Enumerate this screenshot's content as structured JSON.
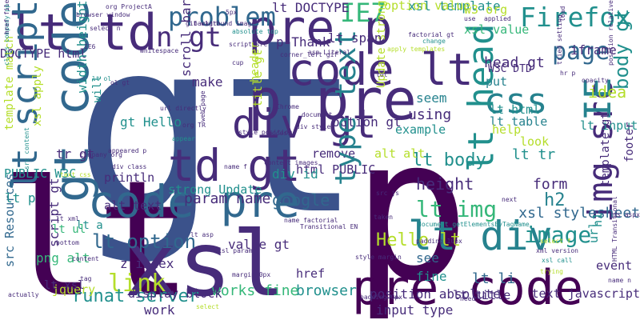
{
  "palette": {
    "navy": "#3b528b",
    "purple": "#440154",
    "indigo": "#472c7a",
    "blue": "#31688e",
    "teal": "#21908d",
    "sea": "#26828e",
    "green": "#35b779",
    "lime": "#6ece58",
    "yellowgreen": "#b5de2b",
    "yellow": "#fde725"
  },
  "words": [
    {
      "text": "gt"
    },
    {
      "text": "lt"
    },
    {
      "text": "p"
    },
    {
      "text": "xsl"
    },
    {
      "text": "code pre"
    },
    {
      "text": "pre code"
    },
    {
      "text": "p pre"
    },
    {
      "text": "pre p"
    },
    {
      "text": "td gt"
    },
    {
      "text": "lt td"
    },
    {
      "text": "gt code"
    },
    {
      "text": "code lt"
    },
    {
      "text": "lt script"
    },
    {
      "text": "img src"
    },
    {
      "text": "lt div"
    },
    {
      "text": "div gt"
    },
    {
      "text": "css"
    },
    {
      "text": "IE"
    },
    {
      "text": "Firefox"
    },
    {
      "text": "page"
    },
    {
      "text": "problem"
    },
    {
      "text": "lt head"
    },
    {
      "text": "n gt"
    },
    {
      "text": "IE7"
    },
    {
      "text": "xsl template"
    },
    {
      "text": "lt DOCTYPE"
    },
    {
      "text": "option value"
    },
    {
      "text": "w3 org"
    },
    {
      "text": "xsl value"
    },
    {
      "text": "head gt"
    },
    {
      "text": "iframe"
    },
    {
      "text": "put"
    },
    {
      "text": "W3C DTD"
    },
    {
      "text": "lt html"
    },
    {
      "text": "lt table"
    },
    {
      "text": "idea"
    },
    {
      "text": "body gt"
    },
    {
      "text": "lt input"
    },
    {
      "text": "seem"
    },
    {
      "text": "using"
    },
    {
      "text": "option gt"
    },
    {
      "text": "example"
    },
    {
      "text": "help"
    },
    {
      "text": "look"
    },
    {
      "text": "footer"
    },
    {
      "text": "gt Hello"
    },
    {
      "text": "lt body"
    },
    {
      "text": "alt alt"
    },
    {
      "text": "remove"
    },
    {
      "text": "lt tr"
    },
    {
      "text": "type text"
    },
    {
      "text": "height"
    },
    {
      "text": "lt img"
    },
    {
      "text": "image"
    },
    {
      "text": "h2"
    },
    {
      "text": "form"
    },
    {
      "text": "url"
    },
    {
      "text": "template gt"
    },
    {
      "text": "xsl stylesheet"
    },
    {
      "text": "Hello lt"
    },
    {
      "text": "html PUBLIC"
    },
    {
      "text": "div id"
    },
    {
      "text": "google"
    },
    {
      "text": "param name"
    },
    {
      "text": "alt text"
    },
    {
      "text": "println"
    },
    {
      "text": "lt option"
    },
    {
      "text": "link"
    },
    {
      "text": "value gt"
    },
    {
      "text": "z index"
    },
    {
      "text": "position absolute"
    },
    {
      "text": "see"
    },
    {
      "text": "lt li"
    },
    {
      "text": "lt title"
    },
    {
      "text": "text javascript"
    },
    {
      "text": "event"
    },
    {
      "text": "input type"
    },
    {
      "text": "fine"
    },
    {
      "text": "browser"
    },
    {
      "text": "works fine"
    },
    {
      "text": "runat server"
    },
    {
      "text": "work"
    },
    {
      "text": "href"
    },
    {
      "text": "jquery"
    },
    {
      "text": "display block"
    },
    {
      "text": "strong Update"
    },
    {
      "text": "PUBLIC W3C"
    },
    {
      "text": "tr gt"
    },
    {
      "text": "script gt"
    },
    {
      "text": "png alt"
    },
    {
      "text": "src Resources"
    },
    {
      "text": "DOCTYPE html"
    },
    {
      "text": "xsl apply"
    },
    {
      "text": "template match"
    },
    {
      "text": "width height"
    },
    {
      "text": "will"
    },
    {
      "text": "make"
    },
    {
      "text": "scroll bar"
    },
    {
      "text": "title gt"
    },
    {
      "text": "p Thank"
    },
    {
      "text": "header"
    },
    {
      "text": "Update strong"
    },
    {
      "text": "lt ul"
    },
    {
      "text": "lt xsl"
    },
    {
      "text": "lt p"
    },
    {
      "text": "lt a"
    },
    {
      "text": "lt span"
    },
    {
      "text": "h1"
    },
    {
      "text": "browser window"
    },
    {
      "text": "org ProjectA"
    },
    {
      "text": "background image"
    },
    {
      "text": "gif width"
    },
    {
      "text": "script src"
    },
    {
      "text": "absolute top"
    },
    {
      "text": "corner_left gif"
    },
    {
      "text": "asp Literal"
    },
    {
      "text": "apply templates"
    },
    {
      "text": "change"
    },
    {
      "text": "use"
    },
    {
      "text": "applied"
    },
    {
      "text": "load"
    },
    {
      "text": "position relative"
    },
    {
      "text": "opacity"
    },
    {
      "text": "tried setting"
    },
    {
      "text": "Chrome"
    },
    {
      "text": "document"
    },
    {
      "text": "div style"
    },
    {
      "text": "style position"
    },
    {
      "text": "content images"
    },
    {
      "text": "name factorial"
    },
    {
      "text": "Transitional EN"
    },
    {
      "text": "src js"
    },
    {
      "text": "taken"
    },
    {
      "text": "next"
    },
    {
      "text": "document getElementsByTagName"
    },
    {
      "text": "padding 10px"
    },
    {
      "text": "xml version"
    },
    {
      "text": "HTML Transitional"
    },
    {
      "text": "name n"
    },
    {
      "text": "gs aspx"
    },
    {
      "text": "select f"
    },
    {
      "text": "trying"
    },
    {
      "text": "xsl call"
    },
    {
      "text": "margin 0px"
    },
    {
      "text": "padding 0px"
    },
    {
      "text": "style margin"
    },
    {
      "text": "xsl param"
    },
    {
      "text": "lt asp"
    },
    {
      "text": "bottom"
    },
    {
      "text": "lt xml"
    },
    {
      "text": "content"
    },
    {
      "text": "actually"
    },
    {
      "text": "tag"
    },
    {
      "text": "select"
    },
    {
      "text": "need"
    },
    {
      "text": "Whitespace"
    },
    {
      "text": "url directly"
    },
    {
      "text": "web page"
    },
    {
      "text": "class company pp"
    },
    {
      "text": "select n"
    },
    {
      "text": "ol gt"
    },
    {
      "text": "div class"
    },
    {
      "text": "company org"
    },
    {
      "text": "appeared p"
    },
    {
      "text": "lt ol"
    },
    {
      "text": "org TR"
    },
    {
      "text": "access"
    },
    {
      "text": "appear"
    },
    {
      "text": "cup"
    },
    {
      "text": "5px"
    },
    {
      "text": "href file"
    },
    {
      "text": "lot"
    },
    {
      "text": "factorial gt"
    },
    {
      "text": "hr p"
    },
    {
      "text": "IE6"
    },
    {
      "text": "src content"
    },
    {
      "text": "text css"
    },
    {
      "text": "name f"
    }
  ]
}
